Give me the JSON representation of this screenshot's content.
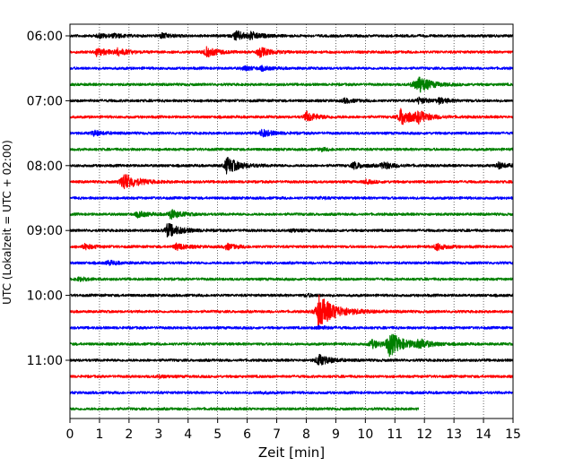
{
  "chart_data": {
    "type": "line",
    "subtype": "helicorder",
    "title": "",
    "xlabel": "Zeit  [min]",
    "ylabel": "UTC (Lokalzeit = UTC + 02:00)",
    "xlim": [
      0,
      15
    ],
    "x_ticks": [
      "0",
      "1",
      "2",
      "3",
      "4",
      "5",
      "6",
      "7",
      "8",
      "9",
      "10",
      "11",
      "12",
      "13",
      "14",
      "15"
    ],
    "y_tick_labels": [
      {
        "row": 0,
        "label": "06:00"
      },
      {
        "row": 4,
        "label": "07:00"
      },
      {
        "row": 8,
        "label": "08:00"
      },
      {
        "row": 12,
        "label": "09:00"
      },
      {
        "row": 16,
        "label": "10:00"
      },
      {
        "row": 20,
        "label": "11:00"
      }
    ],
    "grid": "vertical dotted at each minute",
    "row_colors": [
      "#000000",
      "#ff0000",
      "#0000ff",
      "#008000"
    ],
    "rows": [
      {
        "time": "06:00",
        "events": [
          {
            "t": 1.0,
            "amp": 0.25
          },
          {
            "t": 1.5,
            "amp": 0.2
          },
          {
            "t": 3.1,
            "amp": 0.3
          },
          {
            "t": 5.6,
            "amp": 0.6
          },
          {
            "t": 6.1,
            "amp": 0.35
          }
        ]
      },
      {
        "time": "06:15",
        "events": [
          {
            "t": 0.9,
            "amp": 0.5
          },
          {
            "t": 1.6,
            "amp": 0.4
          },
          {
            "t": 4.6,
            "amp": 0.6
          },
          {
            "t": 6.4,
            "amp": 0.6
          }
        ]
      },
      {
        "time": "06:30",
        "events": [
          {
            "t": 5.9,
            "amp": 0.25
          },
          {
            "t": 6.5,
            "amp": 0.2
          }
        ]
      },
      {
        "time": "06:45",
        "events": [
          {
            "t": 11.8,
            "amp": 0.9
          },
          {
            "t": 11.6,
            "amp": 0.3
          }
        ]
      },
      {
        "time": "07:00",
        "events": [
          {
            "t": 9.3,
            "amp": 0.25
          },
          {
            "t": 11.8,
            "amp": 0.35
          },
          {
            "t": 12.5,
            "amp": 0.3
          }
        ]
      },
      {
        "time": "07:15",
        "events": [
          {
            "t": 8.0,
            "amp": 0.6
          },
          {
            "t": 11.2,
            "amp": 1.1
          },
          {
            "t": 11.8,
            "amp": 0.5
          }
        ]
      },
      {
        "time": "07:30",
        "events": [
          {
            "t": 0.8,
            "amp": 0.3
          },
          {
            "t": 6.5,
            "amp": 0.45
          }
        ]
      },
      {
        "time": "07:45",
        "events": [
          {
            "t": 8.5,
            "amp": 0.15
          }
        ]
      },
      {
        "time": "08:00",
        "events": [
          {
            "t": 5.3,
            "amp": 1.0
          },
          {
            "t": 9.6,
            "amp": 0.4
          },
          {
            "t": 10.6,
            "amp": 0.45
          },
          {
            "t": 14.5,
            "amp": 0.35
          }
        ]
      },
      {
        "time": "08:15",
        "events": [
          {
            "t": 1.8,
            "amp": 1.1
          },
          {
            "t": 10.0,
            "amp": 0.2
          }
        ]
      },
      {
        "time": "08:30",
        "events": [
          {
            "t": 8.4,
            "amp": 0.1
          }
        ]
      },
      {
        "time": "08:45",
        "events": [
          {
            "t": 2.3,
            "amp": 0.35
          },
          {
            "t": 3.4,
            "amp": 0.55
          }
        ]
      },
      {
        "time": "09:00",
        "events": [
          {
            "t": 3.3,
            "amp": 0.9
          },
          {
            "t": 7.5,
            "amp": 0.15
          }
        ]
      },
      {
        "time": "09:15",
        "events": [
          {
            "t": 0.5,
            "amp": 0.3
          },
          {
            "t": 3.6,
            "amp": 0.4
          },
          {
            "t": 5.3,
            "amp": 0.35
          },
          {
            "t": 12.4,
            "amp": 0.4
          }
        ]
      },
      {
        "time": "09:30",
        "events": [
          {
            "t": 1.3,
            "amp": 0.25
          }
        ]
      },
      {
        "time": "09:45",
        "events": [
          {
            "t": 0.3,
            "amp": 0.2
          }
        ]
      },
      {
        "time": "10:00",
        "events": [
          {
            "t": 8.0,
            "amp": 0.15
          }
        ]
      },
      {
        "time": "10:15",
        "events": [
          {
            "t": 8.4,
            "amp": 2.0
          }
        ]
      },
      {
        "time": "10:30",
        "events": [
          {
            "t": 8.4,
            "amp": 0.2
          }
        ]
      },
      {
        "time": "10:45",
        "events": [
          {
            "t": 10.8,
            "amp": 1.4
          },
          {
            "t": 10.2,
            "amp": 0.5
          },
          {
            "t": 11.8,
            "amp": 0.5
          }
        ]
      },
      {
        "time": "11:00",
        "events": [
          {
            "t": 8.4,
            "amp": 0.7
          }
        ]
      },
      {
        "time": "11:15",
        "events": [
          {
            "t": 3.0,
            "amp": 0.15
          }
        ]
      },
      {
        "time": "11:30",
        "events": [
          {
            "t": 6.4,
            "amp": 0.1
          }
        ]
      },
      {
        "time": "11:45",
        "x_end": 11.8,
        "events": []
      }
    ]
  }
}
